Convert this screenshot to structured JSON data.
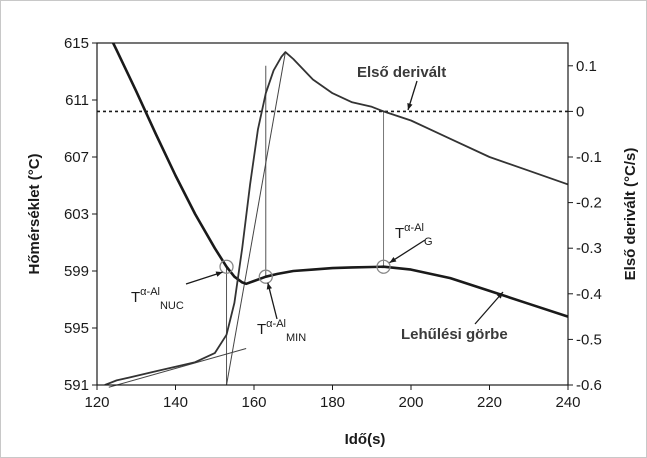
{
  "chart_data": {
    "type": "line",
    "xlabel": "Idő(s)",
    "ylabel_left": "Hőmérséklet (°C)",
    "ylabel_right": "Első derivált (°C/s)",
    "xlim": [
      120,
      240
    ],
    "ylim_left": [
      591,
      615
    ],
    "ylim_right": [
      -0.6,
      0.15
    ],
    "x_ticks": [
      120,
      140,
      160,
      180,
      200,
      220,
      240
    ],
    "y_left_ticks": [
      591,
      595,
      599,
      603,
      607,
      611,
      615
    ],
    "y_right_ticks": [
      0.1,
      0,
      -0.1,
      -0.2,
      -0.3,
      -0.4,
      -0.5,
      -0.6
    ],
    "y_right_tick_labels": [
      "0.1",
      "0",
      "-0.1",
      "-0.2",
      "-0.3",
      "-0.4",
      "-0.5",
      "-0.6"
    ],
    "series": [
      {
        "name": "Lehűlési görbe",
        "axis": "left",
        "color": "#1a1a1a",
        "x": [
          122,
          125,
          130,
          135,
          140,
          145,
          150,
          153,
          155,
          157,
          158,
          160,
          163,
          166,
          170,
          175,
          180,
          185,
          190,
          193,
          200,
          210,
          220,
          230,
          240
        ],
        "y": [
          616.2,
          614.5,
          611.6,
          608.6,
          605.7,
          603.0,
          600.6,
          599.3,
          598.6,
          598.2,
          598.1,
          598.3,
          598.6,
          598.8,
          599.0,
          599.1,
          599.2,
          599.25,
          599.28,
          599.3,
          599.1,
          598.5,
          597.6,
          596.7,
          595.8
        ]
      },
      {
        "name": "Első derivált",
        "axis": "right",
        "color": "#333333",
        "x": [
          122,
          125,
          130,
          135,
          140,
          145,
          150,
          153,
          155,
          157,
          159,
          161,
          163,
          165,
          167,
          168,
          170,
          175,
          180,
          185,
          190,
          193,
          200,
          210,
          220,
          230,
          240
        ],
        "y": [
          -0.6,
          -0.59,
          -0.58,
          -0.57,
          -0.56,
          -0.55,
          -0.53,
          -0.49,
          -0.42,
          -0.3,
          -0.16,
          -0.04,
          0.04,
          0.09,
          0.12,
          0.13,
          0.115,
          0.07,
          0.04,
          0.02,
          0.01,
          0.0,
          -0.02,
          -0.06,
          -0.1,
          -0.13,
          -0.16
        ]
      }
    ],
    "reference_line": {
      "axis": "right",
      "y": 0,
      "style": "dotted"
    },
    "annotations": [
      {
        "base": "T",
        "sup": "α-Al",
        "sub": "NUC",
        "x": 153
      },
      {
        "base": "T",
        "sup": "α-Al",
        "sub": "MIN",
        "x": 163
      },
      {
        "base": "T",
        "sup": "α-Al",
        "sub": "G",
        "x": 193
      },
      {
        "label": "Első derivált"
      },
      {
        "label": "Lehűlési görbe"
      }
    ]
  }
}
